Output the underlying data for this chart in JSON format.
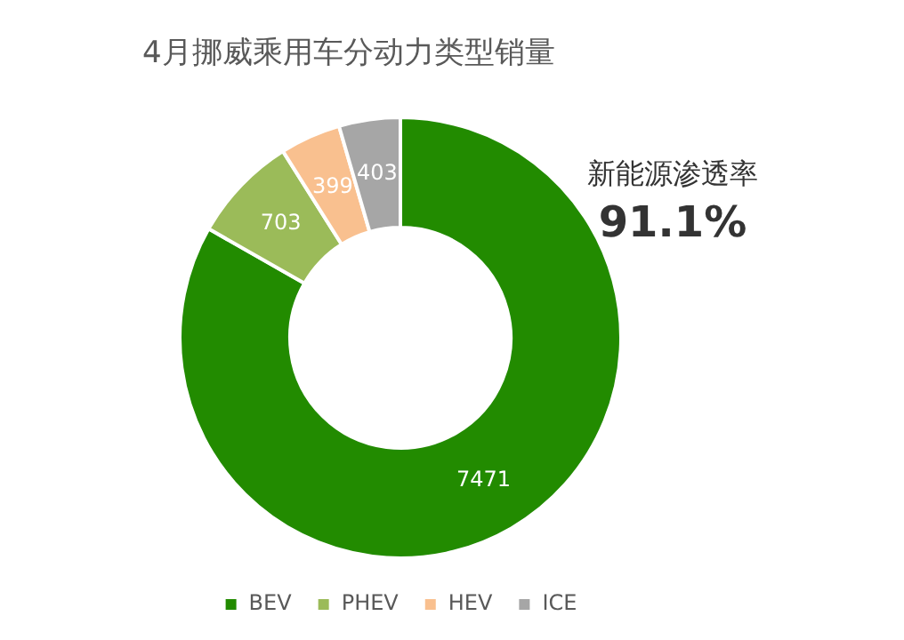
{
  "chart_data": {
    "type": "donut",
    "title": "4月挪威乘用车分动力类型销量",
    "categories": [
      "BEV",
      "PHEV",
      "HEV",
      "ICE"
    ],
    "values": [
      7471,
      703,
      399,
      403
    ],
    "colors": [
      "#228b00",
      "#9bbb59",
      "#f9c08f",
      "#a6a6a6"
    ],
    "data_labels": true,
    "legend": "bottom",
    "annotations": [
      "新能源渗透率",
      "91.1%"
    ]
  }
}
